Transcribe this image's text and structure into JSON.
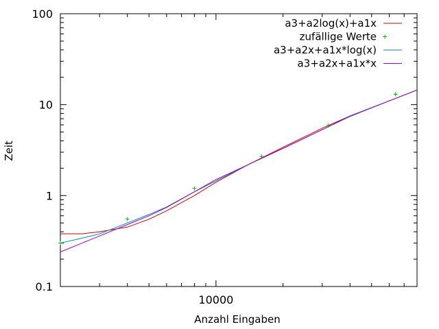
{
  "chart_data": {
    "type": "line",
    "xlabel": "Anzahl Eingaben",
    "ylabel": "Zeit",
    "x_scale": "log",
    "y_scale": "log",
    "xlim": [
      2000,
      80000
    ],
    "ylim": [
      0.1,
      100
    ],
    "grid": false,
    "legend_position": "top-right",
    "x_ticks": [
      {
        "value": 10000,
        "label": "10000"
      }
    ],
    "y_ticks": [
      {
        "value": 0.1,
        "label": "0.1"
      },
      {
        "value": 1,
        "label": "1"
      },
      {
        "value": 10,
        "label": "10"
      },
      {
        "value": 100,
        "label": "100"
      }
    ],
    "series": [
      {
        "name": "a3+a2log(x)+a1x",
        "style": "line",
        "color": "#cc0000",
        "x": [
          2000,
          2500,
          3000,
          4000,
          5000,
          6000,
          8000,
          10000,
          14000,
          20000,
          30000,
          40000,
          60000,
          80000
        ],
        "y": [
          0.38,
          0.38,
          0.4,
          0.45,
          0.55,
          0.68,
          1.0,
          1.4,
          2.2,
          3.4,
          5.5,
          7.5,
          11,
          14.5
        ]
      },
      {
        "name": "zufällige Werte",
        "style": "points",
        "color": "#00bb00",
        "x": [
          2000,
          4000,
          8000,
          16000,
          32000,
          64000
        ],
        "y": [
          0.3,
          0.55,
          1.2,
          2.7,
          5.9,
          13
        ]
      },
      {
        "name": "a3+a2x+a1x*log(x)",
        "style": "line",
        "color": "#0088aa",
        "x": [
          2000,
          2500,
          3000,
          4000,
          5000,
          6000,
          8000,
          10000,
          14000,
          20000,
          30000,
          40000,
          60000,
          80000
        ],
        "y": [
          0.3,
          0.34,
          0.38,
          0.5,
          0.62,
          0.75,
          1.1,
          1.45,
          2.2,
          3.3,
          5.3,
          7.4,
          11,
          14.5
        ]
      },
      {
        "name": "a3+a2x+a1x*x",
        "style": "line",
        "color": "#9900cc",
        "x": [
          2000,
          2500,
          3000,
          4000,
          5000,
          6000,
          8000,
          10000,
          14000,
          20000,
          30000,
          40000,
          60000,
          80000
        ],
        "y": [
          0.24,
          0.3,
          0.36,
          0.48,
          0.6,
          0.74,
          1.1,
          1.5,
          2.2,
          3.3,
          5.3,
          7.5,
          11,
          14.5
        ]
      }
    ]
  }
}
